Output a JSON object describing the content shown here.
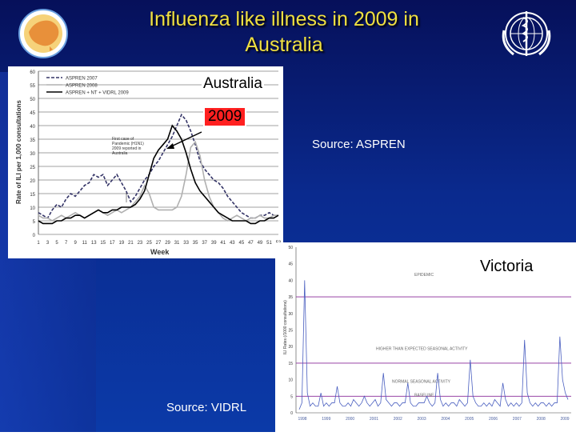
{
  "slide": {
    "title_line1": "Influenza like illness in 2009 in",
    "title_line2": "Australia",
    "callout_australia": "Australia",
    "callout_year": "2009",
    "source_aspren": "Source: ASPREN",
    "callout_victoria": "Victoria",
    "source_vidrl": "Source: VIDRL",
    "colors": {
      "title": "#f0e040",
      "background": "#0a2a8e",
      "year_box": "#ff2020"
    }
  },
  "chart_data": [
    {
      "type": "line",
      "xlabel": "Week",
      "ylabel": "Rate of ILI per 1,000 consultations",
      "ylim": [
        0,
        60
      ],
      "yticks": [
        0,
        5,
        10,
        15,
        20,
        25,
        30,
        35,
        40,
        45,
        50,
        55,
        60
      ],
      "x_ticks": [
        "1",
        "3",
        "5",
        "7",
        "9",
        "11",
        "13",
        "15",
        "17",
        "19",
        "21",
        "23",
        "25",
        "27",
        "29",
        "31",
        "33",
        "35",
        "37",
        "39",
        "41",
        "43",
        "45",
        "47",
        "49",
        "51",
        "53"
      ],
      "legend_position": "top-left",
      "annotation": "First case of Pandemic (H1N1) 2009 reported in Australia",
      "grid": true,
      "series": [
        {
          "name": "ASPREN 2007",
          "style": "dashed",
          "color": "#333366",
          "values": [
            8,
            7,
            6,
            9,
            11,
            10,
            13,
            15,
            14,
            16,
            18,
            19,
            22,
            21,
            22,
            18,
            20,
            22,
            19,
            16,
            12,
            14,
            17,
            20,
            22,
            25,
            27,
            30,
            33,
            36,
            40,
            44,
            42,
            38,
            33,
            27,
            24,
            22,
            20,
            19,
            17,
            14,
            12,
            10,
            8,
            7,
            6,
            6,
            7,
            7,
            8,
            7,
            7
          ]
        },
        {
          "name": "ASPREN 2008",
          "style": "solid",
          "color": "#b0b0b0",
          "values": [
            7,
            6,
            6,
            5,
            6,
            7,
            6,
            7,
            8,
            7,
            6,
            7,
            8,
            9,
            8,
            7,
            8,
            9,
            8,
            9,
            10,
            12,
            14,
            18,
            15,
            10,
            9,
            9,
            9,
            9,
            10,
            14,
            22,
            32,
            34,
            29,
            20,
            14,
            10,
            8,
            6,
            5,
            6,
            7,
            6,
            5,
            6,
            6,
            7,
            6,
            6,
            7,
            7
          ]
        },
        {
          "name": "ASPREN + NT + VIDRL 2009",
          "style": "solid",
          "color": "#000000",
          "values": [
            5,
            4,
            4,
            4,
            5,
            5,
            6,
            6,
            7,
            7,
            6,
            7,
            8,
            9,
            8,
            8,
            9,
            9,
            10,
            10,
            10,
            11,
            13,
            16,
            22,
            28,
            31,
            33,
            35,
            40,
            38,
            35,
            30,
            24,
            19,
            16,
            14,
            12,
            10,
            8,
            7,
            6,
            5,
            5,
            5,
            5,
            4,
            4,
            5,
            5,
            6,
            6,
            7
          ]
        }
      ]
    },
    {
      "type": "line",
      "ylabel": "ILI Rates (/1000 consultations)",
      "ylim": [
        0,
        50
      ],
      "yticks": [
        0,
        5,
        10,
        15,
        20,
        25,
        30,
        35,
        40,
        45,
        50
      ],
      "x_ticks": [
        "1998",
        "1999",
        "2000",
        "2001",
        "2002",
        "2003",
        "2004",
        "2005",
        "2006",
        "2007",
        "2008",
        "2009"
      ],
      "thresholds": [
        {
          "label": "EPIDEMIC",
          "value": 35
        },
        {
          "label": "HIGHER THAN EXPECTED SEASONAL ACTIVITY",
          "value": 15
        },
        {
          "label": "NORMAL SEASONAL ACTIVITY",
          "value": 5
        },
        {
          "label": "BASELINE",
          "value": 1
        }
      ],
      "series": [
        {
          "name": "Victoria ILI",
          "values": [
            1,
            3,
            40,
            6,
            2,
            3,
            2,
            2,
            6,
            2,
            3,
            2,
            3,
            3,
            8,
            3,
            2,
            2,
            3,
            2,
            4,
            3,
            2,
            3,
            5,
            3,
            2,
            3,
            4,
            2,
            3,
            12,
            4,
            3,
            2,
            3,
            3,
            2,
            3,
            3,
            9,
            3,
            2,
            2,
            3,
            3,
            3,
            5,
            3,
            2,
            3,
            12,
            4,
            2,
            3,
            2,
            3,
            3,
            2,
            4,
            3,
            2,
            3,
            16,
            5,
            3,
            2,
            2,
            3,
            2,
            3,
            2,
            4,
            3,
            2,
            9,
            4,
            2,
            3,
            2,
            3,
            2,
            3,
            22,
            6,
            3,
            2,
            3,
            2,
            3,
            3,
            2,
            3,
            2,
            3,
            3,
            23,
            10,
            6,
            4
          ]
        }
      ]
    }
  ]
}
